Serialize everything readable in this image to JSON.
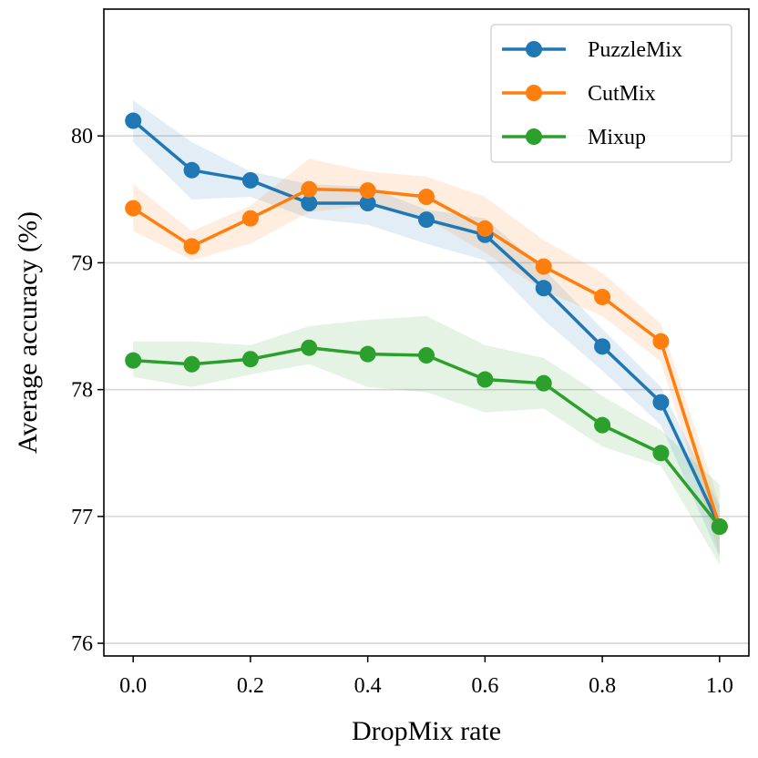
{
  "chart_data": {
    "type": "line",
    "xlabel": "DropMix rate",
    "ylabel": "Average accuracy (%)",
    "xlim": [
      -0.05,
      1.05
    ],
    "ylim": [
      75.9,
      81.0
    ],
    "x_ticks": [
      0.0,
      0.2,
      0.4,
      0.6,
      0.8,
      1.0
    ],
    "x_tick_labels": [
      "0.0",
      "0.2",
      "0.4",
      "0.6",
      "0.8",
      "1.0"
    ],
    "y_ticks": [
      76,
      77,
      78,
      79,
      80
    ],
    "y_tick_labels": [
      "76",
      "77",
      "78",
      "79",
      "80"
    ],
    "grid": "horizontal",
    "legend_position": "top-right",
    "x": [
      0.0,
      0.1,
      0.2,
      0.3,
      0.4,
      0.5,
      0.6,
      0.7,
      0.8,
      0.9,
      1.0
    ],
    "series": [
      {
        "name": "PuzzleMix",
        "color": "#1f77b4",
        "values": [
          80.12,
          79.73,
          79.65,
          79.47,
          79.47,
          79.34,
          79.22,
          78.8,
          78.34,
          77.9,
          76.92
        ],
        "lower": [
          79.95,
          79.5,
          79.52,
          79.35,
          79.3,
          79.15,
          79.02,
          78.55,
          78.15,
          77.72,
          76.68
        ],
        "upper": [
          80.28,
          79.95,
          79.72,
          79.62,
          79.6,
          79.42,
          79.35,
          78.95,
          78.48,
          78.02,
          77.08
        ]
      },
      {
        "name": "CutMix",
        "color": "#ff7f0e",
        "values": [
          79.43,
          79.13,
          79.35,
          79.58,
          79.57,
          79.52,
          79.27,
          78.97,
          78.73,
          78.38,
          76.92
        ],
        "lower": [
          79.25,
          79.02,
          79.15,
          79.4,
          79.45,
          79.35,
          79.08,
          78.78,
          78.58,
          78.22,
          76.7
        ],
        "upper": [
          79.62,
          79.25,
          79.45,
          79.82,
          79.72,
          79.68,
          79.52,
          79.18,
          78.92,
          78.52,
          77.1
        ]
      },
      {
        "name": "Mixup",
        "color": "#2ca02c",
        "values": [
          78.23,
          78.2,
          78.24,
          78.33,
          78.28,
          78.27,
          78.08,
          78.05,
          77.72,
          77.5,
          76.92
        ],
        "lower": [
          78.1,
          78.02,
          78.12,
          78.2,
          78.02,
          77.98,
          77.82,
          77.85,
          77.55,
          77.4,
          76.62
        ],
        "upper": [
          78.38,
          78.38,
          78.35,
          78.5,
          78.55,
          78.58,
          78.35,
          78.25,
          77.95,
          77.68,
          77.25
        ]
      }
    ]
  }
}
